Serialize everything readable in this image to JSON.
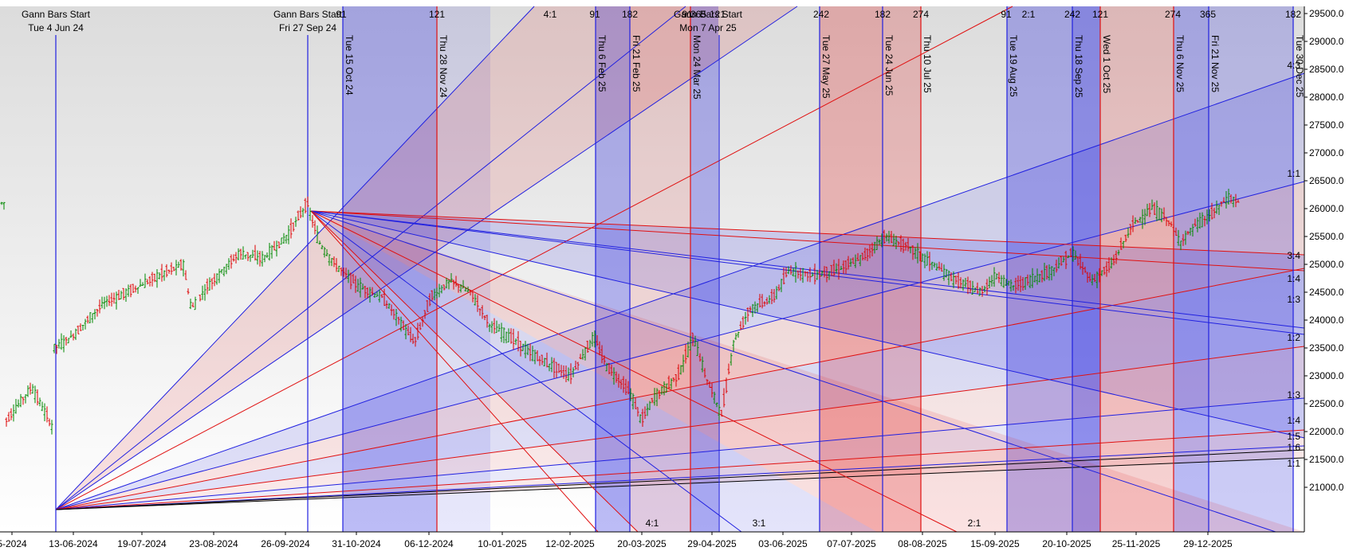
{
  "chart_data": {
    "type": "candlestick",
    "y_axis": {
      "ticks": [
        "21000.0",
        "21500.0",
        "22000.0",
        "22500.0",
        "23000.0",
        "23500.0",
        "24000.0",
        "24500.0",
        "25000.0",
        "25500.0",
        "26000.0",
        "26500.0",
        "27000.0",
        "27500.0",
        "28000.0",
        "28500.0",
        "29000.0",
        "29500.0"
      ],
      "min": 21000,
      "max": 29500
    },
    "x_axis": {
      "ticks": [
        "5-2024",
        "13-06-2024",
        "19-07-2024",
        "23-08-2024",
        "26-09-2024",
        "31-10-2024",
        "06-12-2024",
        "10-01-2025",
        "12-02-2025",
        "20-03-2025",
        "29-04-2025",
        "03-06-2025",
        "07-07-2025",
        "08-08-2025",
        "15-09-2025",
        "20-10-2025",
        "25-11-2025",
        "29-12-2025"
      ]
    },
    "gann_starts": [
      {
        "title": "Gann Bars Start",
        "date": "Tue 4 Jun 24"
      },
      {
        "title": "Gann Bars Start",
        "date": "Fri 27 Sep 24"
      },
      {
        "title": "Gann Bars Start",
        "date": "Mon 7 Apr 25"
      }
    ],
    "vertical_lines": [
      {
        "label": "Tue 15 Oct 24",
        "color": "blue"
      },
      {
        "label": "Thu 28 Nov 24",
        "color": "red"
      },
      {
        "label": "Thu 6 Feb 25",
        "color": "blue"
      },
      {
        "label": "Fri 21 Feb 25",
        "color": "blue"
      },
      {
        "label": "Mon 24 Mar 25",
        "color": "red"
      },
      {
        "label": "Tue 27 May 25",
        "color": "blue"
      },
      {
        "label": "Tue 24 Jun 25",
        "color": "blue"
      },
      {
        "label": "Thu 10 Jul 25",
        "color": "red"
      },
      {
        "label": "Tue 19 Aug 25",
        "color": "blue"
      },
      {
        "label": "Thu 18 Sep 25",
        "color": "blue"
      },
      {
        "label": "Wed 1 Oct 25",
        "color": "red"
      },
      {
        "label": "Thu 6 Nov 25",
        "color": "red"
      },
      {
        "label": "Fri 21 Nov 25",
        "color": "blue"
      },
      {
        "label": "Tue 30 Dec 25",
        "color": "blue"
      }
    ],
    "top_counts": [
      "91",
      "121",
      "4:1",
      "91",
      "182",
      "91",
      "121",
      "365",
      "242",
      "182",
      "274",
      "91",
      "2:1",
      "242",
      "121",
      "274",
      "365",
      "182"
    ],
    "fan_labels_right": [
      "4:3",
      "1:1",
      "3:4",
      "1:4",
      "1:3",
      "1:2",
      "1:3",
      "1:4",
      "1:5",
      "1:6",
      "1:1"
    ],
    "fan_labels_bottom": [
      "4:1",
      "3:1",
      "2:1"
    ],
    "colors": {
      "blue": "#2020e0",
      "red": "#e01010",
      "up": "#008800",
      "down": "#dd0000",
      "black": "#000000"
    }
  }
}
